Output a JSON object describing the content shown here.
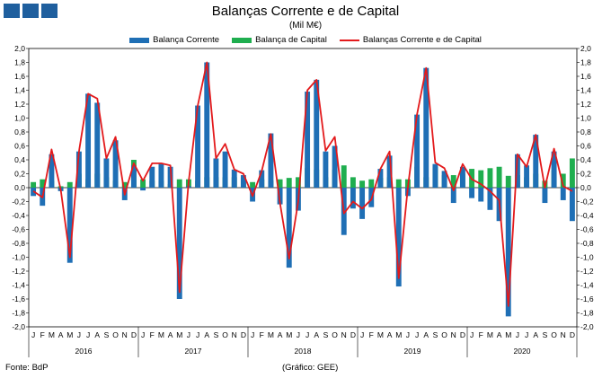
{
  "header": {
    "title": "Balanças Corrente e de Capital",
    "subtitle": "(Mil M€)"
  },
  "footer": {
    "source": "Fonte: BdP",
    "credit": "(Gráfico: GEE)"
  },
  "colors": {
    "corrente": "#1f6fb5",
    "capital": "#1fae4f",
    "total": "#e31a1c",
    "logo": "#1f5f9e"
  },
  "chart_data": {
    "type": "bar",
    "title": "Balanças Corrente e de Capital",
    "subtitle": "(Mil M€)",
    "ylim": [
      -2.0,
      2.0
    ],
    "ystep": 0.2,
    "grid": false,
    "legend_position": "top-center",
    "month_labels": [
      "J",
      "F",
      "M",
      "A",
      "M",
      "J",
      "J",
      "A",
      "S",
      "O",
      "N",
      "D"
    ],
    "years": [
      "2016",
      "2017",
      "2018",
      "2019",
      "2020"
    ],
    "series": [
      {
        "name": "Balança Corrente",
        "kind": "bar",
        "values": [
          -0.12,
          -0.26,
          0.48,
          -0.05,
          -1.08,
          0.52,
          1.35,
          1.22,
          0.42,
          0.68,
          -0.18,
          0.32,
          -0.04,
          0.3,
          0.34,
          0.3,
          -1.6,
          0.02,
          1.18,
          1.8,
          0.42,
          0.52,
          0.26,
          0.18,
          -0.2,
          0.25,
          0.78,
          -0.24,
          -1.15,
          -0.33,
          1.38,
          1.55,
          0.52,
          0.6,
          -0.68,
          -0.3,
          -0.45,
          -0.28,
          0.27,
          0.46,
          -1.42,
          -0.12,
          1.05,
          1.72,
          0.34,
          0.24,
          -0.22,
          0.3,
          -0.15,
          -0.2,
          -0.32,
          -0.48,
          -1.85,
          0.48,
          0.32,
          0.76,
          -0.22,
          0.52,
          -0.18,
          -0.48
        ]
      },
      {
        "name": "Balança de Capital",
        "kind": "bar",
        "values": [
          0.08,
          0.12,
          0.1,
          0.02,
          0.08,
          0.2,
          0.12,
          0.2,
          0.15,
          0.1,
          0.08,
          0.4,
          0.12,
          0.1,
          0.1,
          0.05,
          0.12,
          0.12,
          0.1,
          0.15,
          0.15,
          0.15,
          0.15,
          0.15,
          0.08,
          0.12,
          0.1,
          0.12,
          0.14,
          0.15,
          0.28,
          0.26,
          0.15,
          0.26,
          0.32,
          0.15,
          0.1,
          0.12,
          0.14,
          0.15,
          0.12,
          0.12,
          0.3,
          0.15,
          0.3,
          0.18,
          0.18,
          0.2,
          0.27,
          0.25,
          0.28,
          0.3,
          0.17,
          0.18,
          0.15,
          0.2,
          0.1,
          0.25,
          0.2,
          0.42
        ]
      },
      {
        "name": "Balanças Corrente e de Capital",
        "kind": "line",
        "values": [
          -0.05,
          -0.14,
          0.55,
          -0.03,
          -1.0,
          0.52,
          1.35,
          1.28,
          0.42,
          0.73,
          -0.1,
          0.35,
          0.1,
          0.35,
          0.35,
          0.32,
          -1.5,
          0.08,
          1.18,
          1.8,
          0.42,
          0.63,
          0.26,
          0.2,
          -0.12,
          0.24,
          0.77,
          -0.22,
          -1.02,
          -0.2,
          1.4,
          1.55,
          0.53,
          0.73,
          -0.37,
          -0.2,
          -0.3,
          -0.17,
          0.27,
          0.52,
          -1.3,
          0.0,
          1.05,
          1.72,
          0.36,
          0.28,
          -0.04,
          0.34,
          0.12,
          0.05,
          -0.05,
          -0.18,
          -1.7,
          0.48,
          0.3,
          0.76,
          0.0,
          0.56,
          0.02,
          -0.05
        ]
      }
    ]
  }
}
